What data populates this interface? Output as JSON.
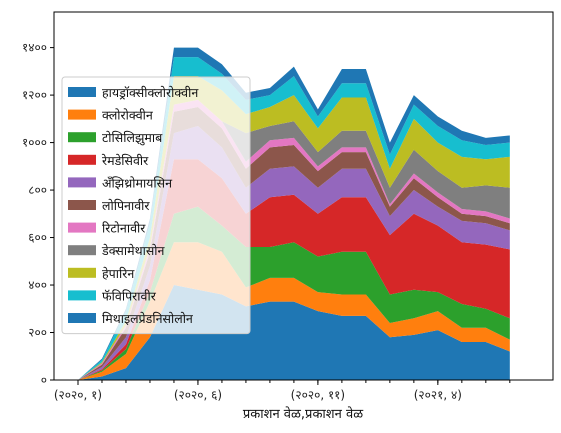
{
  "chart_data": {
    "type": "area",
    "stacked": true,
    "title": "",
    "xlabel": "प्रकाशन वेळ,प्रकाशन वेळ",
    "ylabel": "",
    "ylim": [
      0,
      1550
    ],
    "yticks": [
      0,
      200,
      400,
      600,
      800,
      1000,
      1200,
      1400
    ],
    "ytick_labels": [
      "०",
      "२००",
      "४००",
      "६००",
      "८००",
      "१०००",
      "१२००",
      "१४००"
    ],
    "xticks": [
      1,
      6,
      11,
      16
    ],
    "xtick_labels": [
      "(२०२०, १)",
      "(२०२०, ६)",
      "(२०२०, ११)",
      "(२०२१, ४)"
    ],
    "x": [
      1,
      2,
      3,
      4,
      5,
      6,
      7,
      8,
      9,
      10,
      11,
      12,
      13,
      14,
      15,
      16,
      17,
      18,
      19
    ],
    "grid": false,
    "legend_position": "center-left",
    "series": [
      {
        "name": "हायड्रॉक्सीक्लोरोक्वीन",
        "color": "#1f77b4",
        "values": [
          0,
          15,
          50,
          180,
          400,
          380,
          360,
          310,
          330,
          330,
          290,
          270,
          270,
          180,
          190,
          210,
          160,
          160,
          120
        ]
      },
      {
        "name": "क्लोरोक्वीन",
        "color": "#ff7f0e",
        "values": [
          0,
          20,
          60,
          150,
          180,
          200,
          180,
          80,
          100,
          100,
          80,
          90,
          90,
          60,
          70,
          80,
          60,
          60,
          50
        ]
      },
      {
        "name": "टोसिलिझुमाब",
        "color": "#2ca02c",
        "values": [
          0,
          5,
          20,
          40,
          120,
          150,
          110,
          170,
          130,
          150,
          150,
          180,
          180,
          120,
          120,
          80,
          100,
          80,
          90
        ]
      },
      {
        "name": "रेमडेसिवीर",
        "color": "#d62728",
        "values": [
          0,
          5,
          20,
          50,
          230,
          200,
          200,
          140,
          210,
          200,
          180,
          230,
          230,
          250,
          320,
          280,
          260,
          270,
          290
        ]
      },
      {
        "name": "अँझिथ्रोमायसिन",
        "color": "#9467bd",
        "values": [
          0,
          10,
          30,
          60,
          110,
          140,
          130,
          110,
          120,
          120,
          110,
          120,
          120,
          80,
          100,
          80,
          90,
          90,
          80
        ]
      },
      {
        "name": "लोपिनावीर",
        "color": "#8c564b",
        "values": [
          0,
          10,
          40,
          60,
          90,
          80,
          80,
          80,
          90,
          90,
          70,
          70,
          70,
          40,
          50,
          40,
          30,
          30,
          30
        ]
      },
      {
        "name": "रिटोनावीर",
        "color": "#e377c2",
        "values": [
          0,
          5,
          10,
          20,
          30,
          30,
          30,
          30,
          30,
          30,
          20,
          20,
          20,
          10,
          20,
          20,
          20,
          20,
          20
        ]
      },
      {
        "name": "डेक्सामेथासोन",
        "color": "#7f7f7f",
        "values": [
          0,
          0,
          0,
          0,
          0,
          0,
          0,
          120,
          60,
          70,
          60,
          70,
          70,
          70,
          100,
          90,
          90,
          110,
          130
        ]
      },
      {
        "name": "हेपारिन",
        "color": "#bcbd22",
        "values": [
          0,
          5,
          20,
          40,
          120,
          100,
          130,
          80,
          80,
          110,
          100,
          140,
          140,
          80,
          130,
          120,
          130,
          110,
          130
        ]
      },
      {
        "name": "फॅविपिरावीर",
        "color": "#17becf",
        "values": [
          0,
          10,
          40,
          60,
          80,
          80,
          70,
          60,
          50,
          80,
          50,
          60,
          60,
          60,
          60,
          70,
          70,
          60,
          60
        ]
      },
      {
        "name": "मिथाइलप्रेडनिसोलोन",
        "color": "#1f77b4",
        "values": [
          0,
          5,
          10,
          20,
          40,
          40,
          40,
          30,
          30,
          40,
          30,
          60,
          60,
          50,
          40,
          40,
          40,
          30,
          30
        ]
      }
    ]
  }
}
